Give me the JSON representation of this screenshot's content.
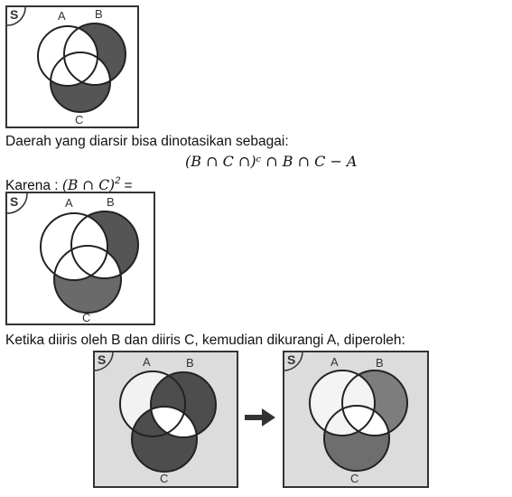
{
  "diagrams": {
    "set_labels": {
      "s": "S",
      "a": "A",
      "b": "B",
      "c": "C"
    }
  },
  "text": {
    "intro": "Daerah yang diarsir bisa dinotasikan sebagai:",
    "formula": "(B ∩ C ∩)ᶜ ∩ B ∩ C − A",
    "karena_label": "Karena :",
    "karena_math": "(B ∩ C)",
    "karena_exp": "2",
    "karena_eq": " =",
    "ketika": "Ketika diiris oleh B dan diiris C, kemudian dikurangi A, diperoleh:"
  },
  "colors": {
    "shade_dark": "#4d4d4d",
    "shade_gray": "#8a8a8a",
    "shade_light_bg": "#dcdcdc",
    "white": "#ffffff",
    "border": "#333333"
  }
}
